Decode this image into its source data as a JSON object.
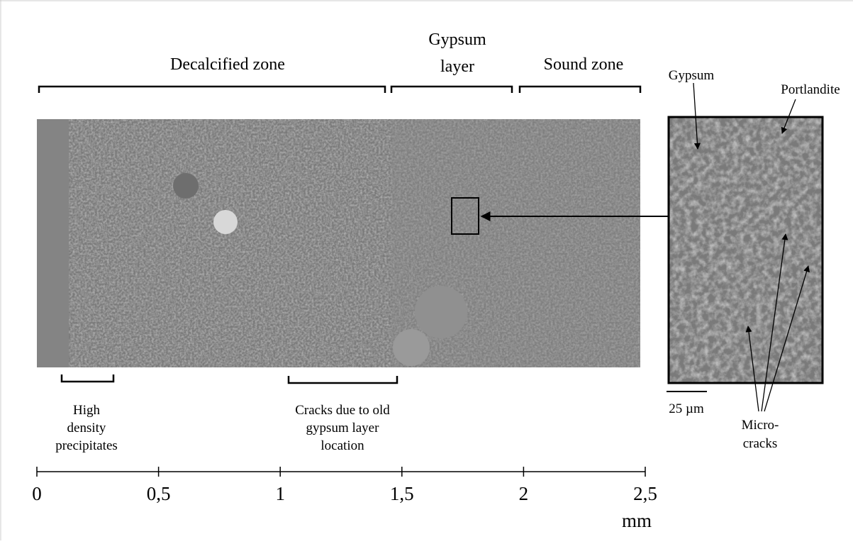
{
  "zones": [
    {
      "lines": [
        "Decalcified zone"
      ]
    },
    {
      "lines": [
        "Gypsum",
        "layer"
      ]
    },
    {
      "lines": [
        "Sound zone"
      ]
    }
  ],
  "inset_labels": {
    "gypsum": "Gypsum",
    "portlandite": "Portlandite",
    "microcracks": [
      "Micro-",
      "cracks"
    ],
    "scale_bar": "25 µm"
  },
  "annotations": [
    {
      "lines": [
        "High",
        "density",
        "precipitates"
      ]
    },
    {
      "lines": [
        "Cracks due to old",
        "gypsum layer",
        "location"
      ]
    }
  ],
  "scale": {
    "lim": [
      0,
      2.5
    ],
    "ticks": [
      {
        "value": 0,
        "label": "0"
      },
      {
        "value": 0.5,
        "label": "0,5"
      },
      {
        "value": 1,
        "label": "1"
      },
      {
        "value": 1.5,
        "label": "1,5"
      },
      {
        "value": 2,
        "label": "2"
      },
      {
        "value": 2.5,
        "label": "2,5"
      }
    ],
    "unit": "mm"
  }
}
